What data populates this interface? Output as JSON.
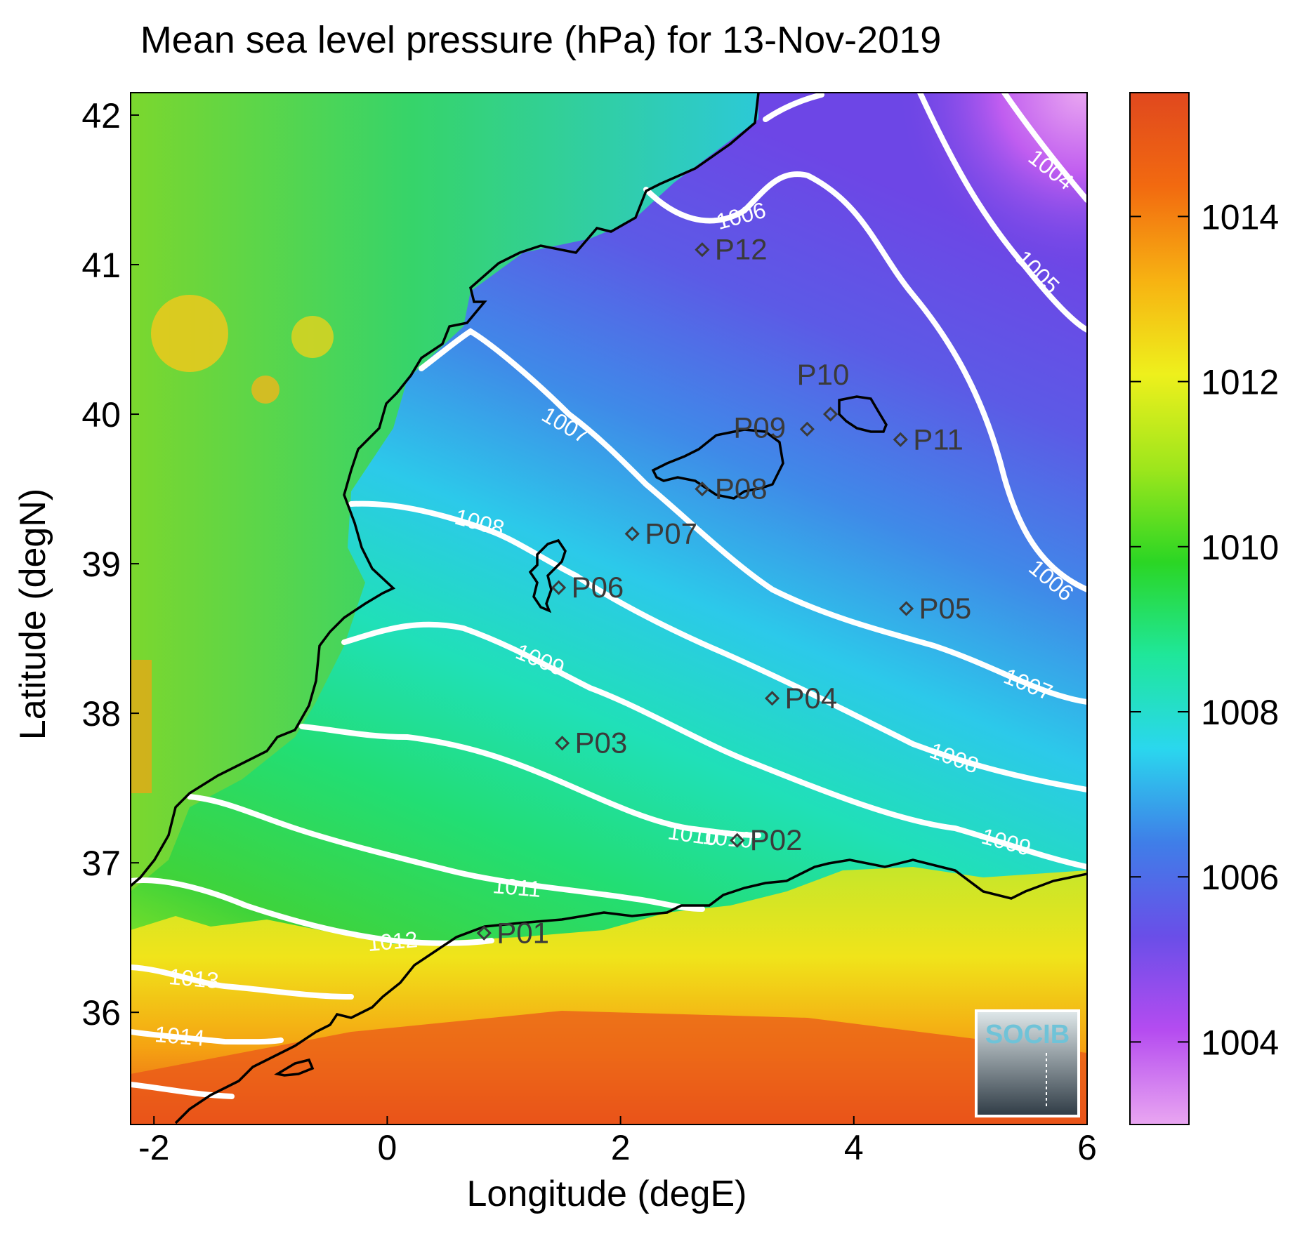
{
  "title": "Mean sea level pressure (hPa) for 13-Nov-2019",
  "x_axis": {
    "label": "Longitude (degE)",
    "ticks": [
      "-2",
      "0",
      "2",
      "4",
      "6"
    ],
    "tick_values": [
      -2,
      0,
      2,
      4,
      6
    ],
    "range": [
      -2.2,
      6
    ]
  },
  "y_axis": {
    "label": "Latitude (degN)",
    "ticks": [
      "36",
      "37",
      "38",
      "39",
      "40",
      "41",
      "42"
    ],
    "tick_values": [
      36,
      37,
      38,
      39,
      40,
      41,
      42
    ],
    "range": [
      35.25,
      42.15
    ]
  },
  "colorbar": {
    "ticks": [
      "1004",
      "1006",
      "1008",
      "1010",
      "1012",
      "1014"
    ],
    "tick_values": [
      1004,
      1006,
      1008,
      1010,
      1012,
      1014
    ],
    "range": [
      1003,
      1015.5
    ],
    "colors": [
      "#e9a6f1",
      "#b54cf0",
      "#6a4ee8",
      "#3f7ee8",
      "#2ad7ee",
      "#1fe79a",
      "#2bd624",
      "#9ee61c",
      "#eef01c",
      "#f7b212",
      "#f26a10",
      "#e0481e"
    ]
  },
  "contour_labels": [
    "1004",
    "1005",
    "1006",
    "1006",
    "1007",
    "1007",
    "1008",
    "1008",
    "1009",
    "1009",
    "1010",
    "1010",
    "1011",
    "1012",
    "1013",
    "1014"
  ],
  "stations": [
    {
      "name": "P01",
      "lon": 0.83,
      "lat": 36.53
    },
    {
      "name": "P02",
      "lon": 3.0,
      "lat": 37.15
    },
    {
      "name": "P03",
      "lon": 1.5,
      "lat": 37.8
    },
    {
      "name": "P04",
      "lon": 3.3,
      "lat": 38.1
    },
    {
      "name": "P05",
      "lon": 4.45,
      "lat": 38.7
    },
    {
      "name": "P06",
      "lon": 1.47,
      "lat": 38.84
    },
    {
      "name": "P07",
      "lon": 2.1,
      "lat": 39.2
    },
    {
      "name": "P08",
      "lon": 2.7,
      "lat": 39.5
    },
    {
      "name": "P09",
      "lon": 3.6,
      "lat": 39.9
    },
    {
      "name": "P10",
      "lon": 3.8,
      "lat": 40.0
    },
    {
      "name": "P11",
      "lon": 4.4,
      "lat": 39.83
    },
    {
      "name": "P12",
      "lon": 2.7,
      "lat": 41.1
    }
  ],
  "logo": "SOCIB"
}
